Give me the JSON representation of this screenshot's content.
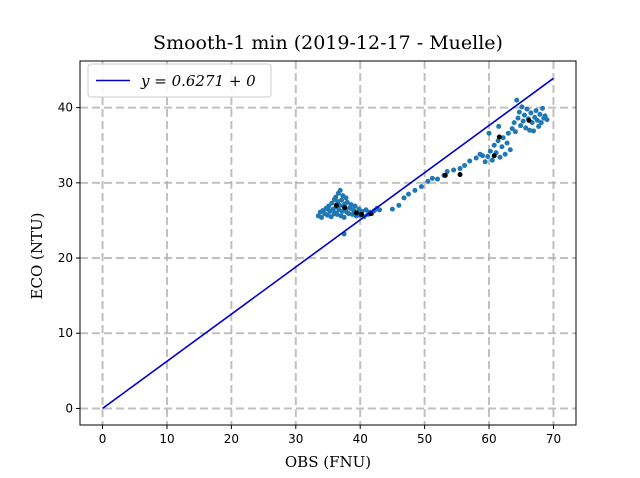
{
  "chart_data": {
    "type": "scatter",
    "title": "Smooth-1 min (2019-12-17 - Muelle)",
    "xlabel": "OBS (FNU)",
    "ylabel": "ECO (NTU)",
    "xlim": [
      -3.5,
      73.5
    ],
    "ylim": [
      -2.2,
      46.2
    ],
    "xticks": [
      0,
      10,
      20,
      30,
      40,
      50,
      60,
      70
    ],
    "yticks": [
      0,
      10,
      20,
      30,
      40
    ],
    "grid": true,
    "legend_position": "top-left",
    "fit_line": {
      "label": "y = 0.6271 + 0",
      "slope": 0.6271,
      "intercept": 0,
      "x_range": [
        0,
        70
      ],
      "color": "#0000cc"
    },
    "series": [
      {
        "color": "#1f77b4",
        "points": [
          [
            33.5,
            25.6
          ],
          [
            33.8,
            26.1
          ],
          [
            34.0,
            25.4
          ],
          [
            34.2,
            26.3
          ],
          [
            34.5,
            25.9
          ],
          [
            34.7,
            26.6
          ],
          [
            34.9,
            25.7
          ],
          [
            35.1,
            26.9
          ],
          [
            35.3,
            26.2
          ],
          [
            35.5,
            25.5
          ],
          [
            35.6,
            27.3
          ],
          [
            35.8,
            26.5
          ],
          [
            36.0,
            27.8
          ],
          [
            36.1,
            26.0
          ],
          [
            36.2,
            28.1
          ],
          [
            36.3,
            26.8
          ],
          [
            36.4,
            25.8
          ],
          [
            36.5,
            27.5
          ],
          [
            36.6,
            28.6
          ],
          [
            36.7,
            26.4
          ],
          [
            36.8,
            27.0
          ],
          [
            36.9,
            29.0
          ],
          [
            37.0,
            25.6
          ],
          [
            37.1,
            27.7
          ],
          [
            37.2,
            26.2
          ],
          [
            37.3,
            28.3
          ],
          [
            37.4,
            26.9
          ],
          [
            37.5,
            25.4
          ],
          [
            37.6,
            27.2
          ],
          [
            37.7,
            26.5
          ],
          [
            37.8,
            28.0
          ],
          [
            37.9,
            26.1
          ],
          [
            38.0,
            27.4
          ],
          [
            38.2,
            25.9
          ],
          [
            38.4,
            26.7
          ],
          [
            38.6,
            27.1
          ],
          [
            38.8,
            25.8
          ],
          [
            39.0,
            26.3
          ],
          [
            39.2,
            26.9
          ],
          [
            39.4,
            25.6
          ],
          [
            39.6,
            26.0
          ],
          [
            39.8,
            26.5
          ],
          [
            40.0,
            25.7
          ],
          [
            40.3,
            26.2
          ],
          [
            40.6,
            25.5
          ],
          [
            40.9,
            26.4
          ],
          [
            41.2,
            25.8
          ],
          [
            41.5,
            26.1
          ],
          [
            41.8,
            25.9
          ],
          [
            42.2,
            26.3
          ],
          [
            42.6,
            26.6
          ],
          [
            43.0,
            26.4
          ],
          [
            37.5,
            23.2
          ],
          [
            35.0,
            26.5
          ],
          [
            36.0,
            25.9
          ],
          [
            38.5,
            26.6
          ],
          [
            45.0,
            26.5
          ],
          [
            46.0,
            27.0
          ],
          [
            46.8,
            28.0
          ],
          [
            47.5,
            28.5
          ],
          [
            48.5,
            29.0
          ],
          [
            49.5,
            29.5
          ],
          [
            50.5,
            30.2
          ],
          [
            51.2,
            30.6
          ],
          [
            52.0,
            30.5
          ],
          [
            53.0,
            31.0
          ],
          [
            53.5,
            31.5
          ],
          [
            54.5,
            31.7
          ],
          [
            55.5,
            31.9
          ],
          [
            56.2,
            32.3
          ],
          [
            57.0,
            32.9
          ],
          [
            58.0,
            33.3
          ],
          [
            58.6,
            33.8
          ],
          [
            59.4,
            32.8
          ],
          [
            59.8,
            33.5
          ],
          [
            60.2,
            34.2
          ],
          [
            60.5,
            33.0
          ],
          [
            60.8,
            35.0
          ],
          [
            61.1,
            34.0
          ],
          [
            61.4,
            35.6
          ],
          [
            61.7,
            33.4
          ],
          [
            62.0,
            34.8
          ],
          [
            62.2,
            36.0
          ],
          [
            62.5,
            33.8
          ],
          [
            62.8,
            35.3
          ],
          [
            63.0,
            36.6
          ],
          [
            63.3,
            34.4
          ],
          [
            63.6,
            37.2
          ],
          [
            63.9,
            38.0
          ],
          [
            64.1,
            36.8
          ],
          [
            64.3,
            41.0
          ],
          [
            64.5,
            38.6
          ],
          [
            64.7,
            39.4
          ],
          [
            64.9,
            37.6
          ],
          [
            65.1,
            40.1
          ],
          [
            65.3,
            38.2
          ],
          [
            65.5,
            39.0
          ],
          [
            65.7,
            37.3
          ],
          [
            65.9,
            39.8
          ],
          [
            66.1,
            38.5
          ],
          [
            66.3,
            37.0
          ],
          [
            66.5,
            39.3
          ],
          [
            66.7,
            38.0
          ],
          [
            66.9,
            36.9
          ],
          [
            67.1,
            38.7
          ],
          [
            67.3,
            39.6
          ],
          [
            67.5,
            38.3
          ],
          [
            67.7,
            37.5
          ],
          [
            67.9,
            39.1
          ],
          [
            68.1,
            38.0
          ],
          [
            68.3,
            39.9
          ],
          [
            68.5,
            38.6
          ],
          [
            68.7,
            38.9
          ],
          [
            69.0,
            38.4
          ],
          [
            59.0,
            33.6
          ],
          [
            60.0,
            36.6
          ],
          [
            61.5,
            37.5
          ]
        ]
      },
      {
        "color": "#000000",
        "points": [
          [
            36.3,
            27.0
          ],
          [
            37.6,
            26.7
          ],
          [
            39.4,
            26.0
          ],
          [
            40.2,
            25.8
          ],
          [
            41.6,
            25.9
          ],
          [
            53.2,
            31.0
          ],
          [
            55.5,
            31.1
          ],
          [
            60.8,
            33.6
          ],
          [
            61.6,
            36.1
          ],
          [
            66.2,
            38.3
          ]
        ]
      }
    ]
  }
}
